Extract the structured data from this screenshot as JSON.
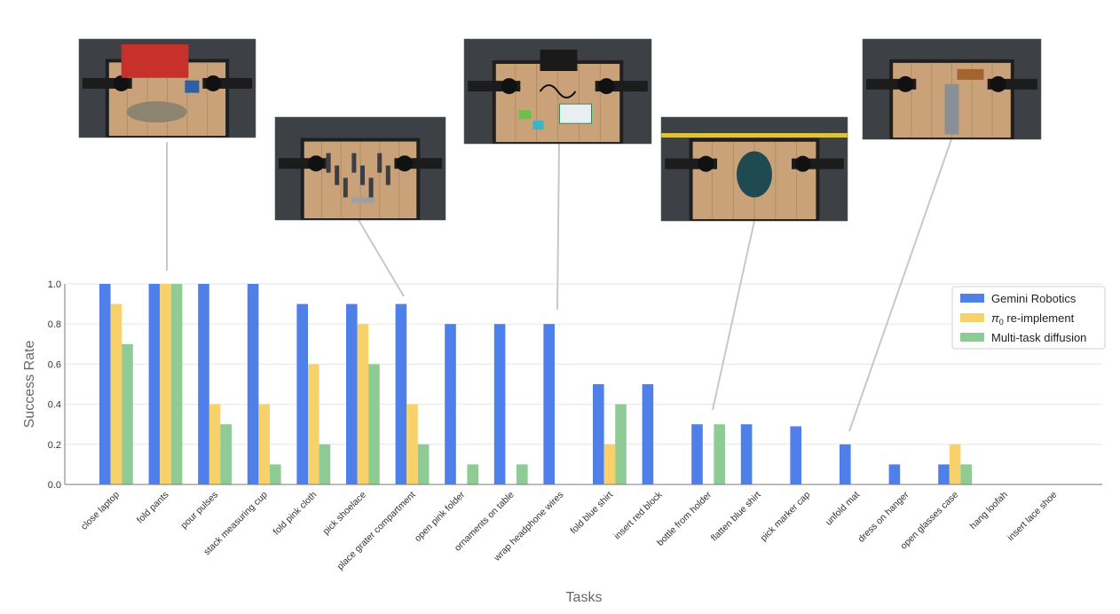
{
  "chart_data": {
    "type": "bar",
    "xlabel": "Tasks",
    "ylabel": "Success Rate",
    "ylim": [
      0,
      1.0
    ],
    "yticks": [
      "0.0",
      "0.2",
      "0.4",
      "0.6",
      "0.8",
      "1.0"
    ],
    "grid": true,
    "legend_position": "top-right",
    "categories": [
      "close laptop",
      "fold pants",
      "pour pulses",
      "stack measuring cup",
      "fold pink cloth",
      "pick shoelace",
      "place grater compartment",
      "open pink folder",
      "ornaments on table",
      "wrap headphone wires",
      "fold blue shirt",
      "insert red block",
      "bottle from holder",
      "flatten blue shirt",
      "pick marker cap",
      "unfold mat",
      "dress on hanger",
      "open glasses case",
      "hang loofah",
      "insert lace shoe"
    ],
    "series": [
      {
        "name": "Gemini Robotics",
        "color": "#4f7fe8",
        "values": [
          1.0,
          1.0,
          1.0,
          1.0,
          0.9,
          0.9,
          0.9,
          0.8,
          0.8,
          0.8,
          0.5,
          0.5,
          0.3,
          0.3,
          0.29,
          0.2,
          0.1,
          0.1,
          0.0,
          0.0
        ]
      },
      {
        "name": "re-implement",
        "name_prefix": "π",
        "name_subscript": "0",
        "color": "#f7d26a",
        "values": [
          0.9,
          1.0,
          0.4,
          0.4,
          0.6,
          0.8,
          0.4,
          0.0,
          0.0,
          0.0,
          0.2,
          0.0,
          0.0,
          0.0,
          0.0,
          0.0,
          0.0,
          0.2,
          0.0,
          0.0
        ]
      },
      {
        "name": "Multi-task diffusion",
        "color": "#8fcb94",
        "values": [
          0.7,
          1.0,
          0.3,
          0.1,
          0.2,
          0.6,
          0.2,
          0.1,
          0.1,
          0.0,
          0.4,
          0.0,
          0.3,
          0.0,
          0.0,
          0.0,
          0.0,
          0.1,
          0.0,
          0.0
        ]
      }
    ],
    "callouts": [
      {
        "name": "fold-pants-photo",
        "category_index": 1,
        "scene": "red-bin"
      },
      {
        "name": "place-grater-compartment-photo",
        "category_index": 6,
        "scene": "tools"
      },
      {
        "name": "wrap-headphone-wires-photo",
        "category_index": 9,
        "scene": "desk"
      },
      {
        "name": "bottle-from-holder-photo",
        "category_index": 12,
        "scene": "cloth"
      },
      {
        "name": "unfold-mat-photo",
        "category_index": 15,
        "scene": "mat"
      }
    ]
  }
}
